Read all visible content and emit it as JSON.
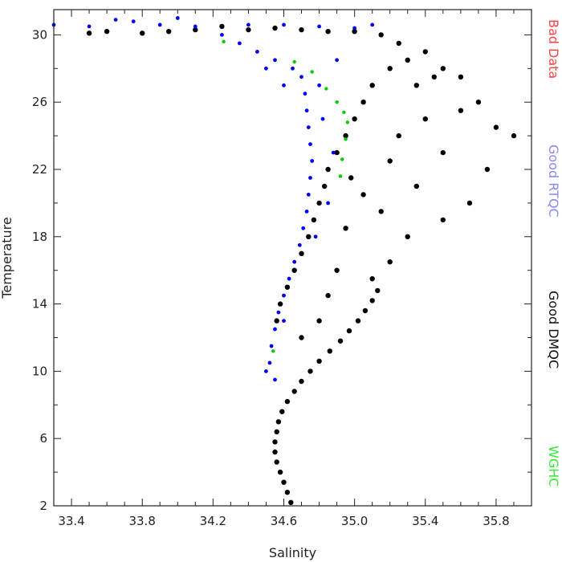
{
  "chart_data": {
    "type": "scatter",
    "xlabel": "Salinity",
    "ylabel": "Temperature",
    "xlim": [
      33.3,
      36.0
    ],
    "ylim": [
      2,
      31.5
    ],
    "x_ticks": [
      "33.4",
      "33.8",
      "34.2",
      "34.6",
      "35.0",
      "35.4",
      "35.8"
    ],
    "y_ticks": [
      "2",
      "6",
      "10",
      "14",
      "18",
      "22",
      "26",
      "30"
    ],
    "x_tick_values": [
      33.4,
      33.8,
      34.2,
      34.6,
      35.0,
      35.4,
      35.8
    ],
    "y_tick_values": [
      2,
      6,
      10,
      14,
      18,
      22,
      26,
      30
    ],
    "grid": false,
    "legend_placement": "right (vertical)",
    "legend": [
      {
        "label": "Bad Data",
        "color": "#ff3333"
      },
      {
        "label": "Good RTQC",
        "color": "#8888ff"
      },
      {
        "label": "Good DMQC",
        "color": "#000000"
      },
      {
        "label": "WGHC",
        "color": "#33ee33"
      }
    ],
    "series": [
      {
        "name": "Good DMQC",
        "color": "#000000",
        "points": [
          [
            34.64,
            2.2
          ],
          [
            34.62,
            2.8
          ],
          [
            34.6,
            3.4
          ],
          [
            34.58,
            4.0
          ],
          [
            34.56,
            4.6
          ],
          [
            34.55,
            5.2
          ],
          [
            34.55,
            5.8
          ],
          [
            34.56,
            6.4
          ],
          [
            34.57,
            7.0
          ],
          [
            34.59,
            7.6
          ],
          [
            34.62,
            8.2
          ],
          [
            34.66,
            8.8
          ],
          [
            34.7,
            9.4
          ],
          [
            34.75,
            10.0
          ],
          [
            34.8,
            10.6
          ],
          [
            34.86,
            11.2
          ],
          [
            34.92,
            11.8
          ],
          [
            34.97,
            12.4
          ],
          [
            35.02,
            13.0
          ],
          [
            35.06,
            13.6
          ],
          [
            35.1,
            14.2
          ],
          [
            35.13,
            14.8
          ],
          [
            34.56,
            13.0
          ],
          [
            34.58,
            14.0
          ],
          [
            34.62,
            15.0
          ],
          [
            34.66,
            16.0
          ],
          [
            34.7,
            17.0
          ],
          [
            34.74,
            18.0
          ],
          [
            34.77,
            19.0
          ],
          [
            34.8,
            20.0
          ],
          [
            34.83,
            21.0
          ],
          [
            34.85,
            22.0
          ],
          [
            34.9,
            23.0
          ],
          [
            34.95,
            24.0
          ],
          [
            35.0,
            25.0
          ],
          [
            35.05,
            26.0
          ],
          [
            35.1,
            27.0
          ],
          [
            35.2,
            28.0
          ],
          [
            35.3,
            28.5
          ],
          [
            35.4,
            29.0
          ],
          [
            35.5,
            28.0
          ],
          [
            35.45,
            27.5
          ],
          [
            35.35,
            27.0
          ],
          [
            35.25,
            29.5
          ],
          [
            35.15,
            30.0
          ],
          [
            35.0,
            30.2
          ],
          [
            34.85,
            30.2
          ],
          [
            34.7,
            30.3
          ],
          [
            34.55,
            30.4
          ],
          [
            34.4,
            30.3
          ],
          [
            34.25,
            30.5
          ],
          [
            34.1,
            30.3
          ],
          [
            33.95,
            30.2
          ],
          [
            33.8,
            30.1
          ],
          [
            33.6,
            30.2
          ],
          [
            33.5,
            30.1
          ],
          [
            35.6,
            27.5
          ],
          [
            35.7,
            26.0
          ],
          [
            35.8,
            24.5
          ],
          [
            35.9,
            24.0
          ],
          [
            35.75,
            22.0
          ],
          [
            35.65,
            20.0
          ],
          [
            35.5,
            19.0
          ],
          [
            35.3,
            18.0
          ],
          [
            35.2,
            16.5
          ],
          [
            35.1,
            15.5
          ],
          [
            35.35,
            21.0
          ],
          [
            35.5,
            23.0
          ],
          [
            35.4,
            25.0
          ],
          [
            35.2,
            22.5
          ],
          [
            35.05,
            20.5
          ],
          [
            34.95,
            18.5
          ],
          [
            34.9,
            16.0
          ],
          [
            34.85,
            14.5
          ],
          [
            34.8,
            13.0
          ],
          [
            34.7,
            12.0
          ],
          [
            35.6,
            25.5
          ],
          [
            35.25,
            24.0
          ],
          [
            35.15,
            19.5
          ],
          [
            34.98,
            21.5
          ]
        ]
      },
      {
        "name": "Good RTQC",
        "color": "#0000ff",
        "points": [
          [
            34.55,
            9.5
          ],
          [
            34.52,
            10.5
          ],
          [
            34.53,
            11.5
          ],
          [
            34.55,
            12.5
          ],
          [
            34.57,
            13.5
          ],
          [
            34.6,
            14.5
          ],
          [
            34.63,
            15.5
          ],
          [
            34.66,
            16.5
          ],
          [
            34.69,
            17.5
          ],
          [
            34.71,
            18.5
          ],
          [
            34.73,
            19.5
          ],
          [
            34.74,
            20.5
          ],
          [
            34.75,
            21.5
          ],
          [
            34.76,
            22.5
          ],
          [
            34.75,
            23.5
          ],
          [
            34.74,
            24.5
          ],
          [
            34.73,
            25.5
          ],
          [
            34.72,
            26.5
          ],
          [
            34.7,
            27.5
          ],
          [
            34.65,
            28.0
          ],
          [
            34.55,
            28.5
          ],
          [
            34.45,
            29.0
          ],
          [
            34.35,
            29.5
          ],
          [
            34.25,
            30.0
          ],
          [
            34.1,
            30.5
          ],
          [
            33.9,
            30.6
          ],
          [
            33.75,
            30.8
          ],
          [
            33.65,
            30.9
          ],
          [
            33.3,
            30.6
          ],
          [
            33.5,
            30.5
          ],
          [
            34.0,
            31.0
          ],
          [
            34.4,
            30.6
          ],
          [
            34.6,
            30.6
          ],
          [
            34.8,
            30.5
          ],
          [
            35.0,
            30.4
          ],
          [
            35.1,
            30.6
          ],
          [
            34.82,
            25.0
          ],
          [
            34.88,
            23.0
          ],
          [
            34.8,
            27.0
          ],
          [
            34.9,
            28.5
          ],
          [
            34.6,
            27.0
          ],
          [
            34.5,
            28.0
          ],
          [
            34.85,
            20.0
          ],
          [
            34.78,
            18.0
          ],
          [
            34.5,
            10.0
          ],
          [
            34.6,
            13.0
          ]
        ]
      },
      {
        "name": "WGHC",
        "color": "#00cc00",
        "points": [
          [
            34.26,
            29.6
          ],
          [
            34.66,
            28.4
          ],
          [
            34.76,
            27.8
          ],
          [
            34.84,
            26.8
          ],
          [
            34.9,
            26.0
          ],
          [
            34.94,
            25.4
          ],
          [
            34.96,
            24.8
          ],
          [
            34.95,
            23.8
          ],
          [
            34.93,
            22.6
          ],
          [
            34.92,
            21.6
          ],
          [
            34.54,
            11.2
          ]
        ]
      }
    ]
  }
}
